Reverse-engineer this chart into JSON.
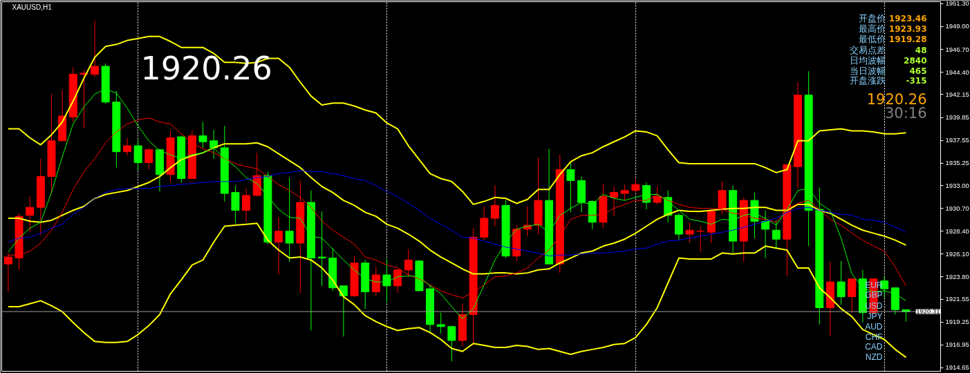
{
  "chart_data": {
    "type": "candlestick",
    "title": "XAUUSD,H1",
    "categories": [
      null,
      null,
      null,
      null,
      null,
      null,
      null,
      null,
      null,
      null,
      null,
      null,
      null,
      null,
      null,
      null,
      null,
      null,
      null,
      null,
      null,
      null,
      null,
      null,
      null,
      null,
      null,
      null,
      null,
      null,
      null,
      null,
      null,
      null,
      null,
      null,
      null,
      null,
      null,
      null,
      null,
      null,
      null,
      null,
      null,
      null,
      null,
      null,
      null,
      null,
      null,
      null,
      null,
      null,
      null,
      null,
      null,
      null,
      null,
      null,
      null,
      null,
      null,
      null,
      null,
      null,
      null,
      null,
      null,
      null,
      null,
      null,
      null,
      null,
      null,
      null,
      null,
      null,
      null,
      null,
      null,
      null,
      null,
      null
    ],
    "ohlc": [
      [
        1925.1,
        1926.2,
        1922.3,
        1925.8
      ],
      [
        1925.7,
        1930.2,
        1924.5,
        1929.9
      ],
      [
        1930.0,
        1931.9,
        1928.3,
        1930.8
      ],
      [
        1930.8,
        1935.7,
        1928.0,
        1933.9
      ],
      [
        1933.9,
        1942.2,
        1932.1,
        1937.5
      ],
      [
        1937.5,
        1942.6,
        1937.5,
        1940.0
      ],
      [
        1939.9,
        1944.9,
        1939.4,
        1944.2
      ],
      [
        1944.2,
        1944.6,
        1938.8,
        1944.3
      ],
      [
        1944.2,
        1949.6,
        1943.9,
        1945.0
      ],
      [
        1945.0,
        1945.3,
        1941.2,
        1941.4
      ],
      [
        1941.4,
        1942.5,
        1934.8,
        1936.4
      ],
      [
        1936.4,
        1937.8,
        1936.0,
        1937.0
      ],
      [
        1937.0,
        1937.6,
        1934.5,
        1935.3
      ],
      [
        1935.3,
        1936.8,
        1934.6,
        1936.6
      ],
      [
        1936.6,
        1936.7,
        1932.4,
        1934.1
      ],
      [
        1934.1,
        1938.5,
        1933.4,
        1937.8
      ],
      [
        1937.9,
        1938.0,
        1933.3,
        1933.7
      ],
      [
        1933.7,
        1938.5,
        1933.7,
        1938.0
      ],
      [
        1938.0,
        1939.4,
        1936.8,
        1937.4
      ],
      [
        1937.5,
        1938.6,
        1935.7,
        1936.8
      ],
      [
        1936.8,
        1939.0,
        1931.4,
        1932.2
      ],
      [
        1932.3,
        1933.0,
        1929.2,
        1930.5
      ],
      [
        1930.5,
        1932.7,
        1929.4,
        1932.0
      ],
      [
        1932.0,
        1936.3,
        1931.9,
        1934.0
      ],
      [
        1934.0,
        1934.4,
        1927.1,
        1927.3
      ],
      [
        1927.3,
        1929.8,
        1924.0,
        1928.4
      ],
      [
        1928.4,
        1933.8,
        1925.3,
        1927.2
      ],
      [
        1927.2,
        1933.5,
        1922.2,
        1931.3
      ],
      [
        1931.3,
        1932.5,
        1918.4,
        1925.7
      ],
      [
        1925.8,
        1930.4,
        1922.9,
        1925.7
      ],
      [
        1925.7,
        1926.7,
        1922.4,
        1922.7
      ],
      [
        1922.9,
        1922.9,
        1917.8,
        1921.9
      ],
      [
        1921.9,
        1925.9,
        1921.8,
        1925.2
      ],
      [
        1925.2,
        1925.5,
        1920.6,
        1922.3
      ],
      [
        1922.3,
        1924.8,
        1921.9,
        1924.0
      ],
      [
        1924.0,
        1925.6,
        1921.2,
        1922.9
      ],
      [
        1922.9,
        1924.6,
        1922.2,
        1924.5
      ],
      [
        1924.5,
        1926.6,
        1923.8,
        1925.5
      ],
      [
        1925.4,
        1925.5,
        1922.4,
        1922.4
      ],
      [
        1922.6,
        1923.0,
        1918.1,
        1919.0
      ],
      [
        1919.0,
        1920.2,
        1918.1,
        1918.8
      ],
      [
        1918.8,
        1918.9,
        1915.3,
        1917.4
      ],
      [
        1917.4,
        1921.1,
        1916.8,
        1920.0
      ],
      [
        1920.0,
        1928.7,
        1916.9,
        1927.8
      ],
      [
        1927.8,
        1930.9,
        1927.5,
        1929.7
      ],
      [
        1929.7,
        1933.0,
        1928.9,
        1931.0
      ],
      [
        1931.0,
        1931.5,
        1925.7,
        1925.9
      ],
      [
        1925.9,
        1929.0,
        1925.4,
        1928.6
      ],
      [
        1928.6,
        1930.9,
        1927.9,
        1929.0
      ],
      [
        1929.0,
        1935.8,
        1928.1,
        1931.5
      ],
      [
        1931.5,
        1936.7,
        1925.1,
        1925.1
      ],
      [
        1925.1,
        1936.1,
        1924.2,
        1934.6
      ],
      [
        1934.6,
        1935.3,
        1930.3,
        1933.5
      ],
      [
        1933.5,
        1933.9,
        1930.3,
        1931.3
      ],
      [
        1931.4,
        1931.5,
        1928.6,
        1929.3
      ],
      [
        1929.3,
        1933.1,
        1928.7,
        1931.9
      ],
      [
        1931.8,
        1932.9,
        1929.9,
        1932.3
      ],
      [
        1932.2,
        1933.1,
        1931.5,
        1932.5
      ],
      [
        1932.5,
        1933.7,
        1932.3,
        1933.1
      ],
      [
        1933.0,
        1933.3,
        1930.6,
        1931.3
      ],
      [
        1931.3,
        1932.9,
        1931.1,
        1931.9
      ],
      [
        1931.8,
        1932.5,
        1929.3,
        1930.0
      ],
      [
        1930.0,
        1930.2,
        1927.5,
        1928.1
      ],
      [
        1928.1,
        1929.3,
        1927.2,
        1928.5
      ],
      [
        1928.4,
        1928.9,
        1926.3,
        1928.4
      ],
      [
        1928.3,
        1930.6,
        1927.2,
        1930.4
      ],
      [
        1930.7,
        1933.4,
        1930.1,
        1932.5
      ],
      [
        1932.5,
        1933.0,
        1926.2,
        1927.4
      ],
      [
        1927.4,
        1931.8,
        1925.3,
        1931.5
      ],
      [
        1931.5,
        1932.3,
        1927.7,
        1929.4
      ],
      [
        1929.4,
        1930.5,
        1925.7,
        1928.6
      ],
      [
        1928.5,
        1929.5,
        1926.7,
        1927.6
      ],
      [
        1927.6,
        1935.1,
        1923.9,
        1935.1
      ],
      [
        1934.9,
        1943.4,
        1932.7,
        1942.1
      ],
      [
        1942.1,
        1944.5,
        1926.9,
        1930.5
      ],
      [
        1930.6,
        1932.8,
        1919.0,
        1920.7
      ],
      [
        1920.7,
        1925.3,
        1917.8,
        1923.3
      ],
      [
        1923.3,
        1925.4,
        1921.0,
        1921.8
      ],
      [
        1921.8,
        1923.6,
        1920.2,
        1923.6
      ],
      [
        1923.6,
        1924.5,
        1919.2,
        1920.2
      ],
      [
        1920.2,
        1923.6,
        1920.0,
        1923.6
      ],
      [
        1923.4,
        1923.9,
        1921.7,
        1922.6
      ],
      [
        1922.7,
        1922.7,
        1920.0,
        1920.5
      ],
      [
        1920.5,
        1920.5,
        1919.3,
        1920.3
      ]
    ],
    "colors": [
      "#ff0000",
      "#ff0000",
      "#ff0000",
      "#ff0000",
      "#ff0000",
      "#ff0000",
      "#ff0000",
      "#ff0000",
      "#ff0000",
      "#00ff00",
      "#00ff00",
      "#ff0000",
      "#00ff00",
      "#ff0000",
      "#00ff00",
      "#ff0000",
      "#00ff00",
      "#ff0000",
      "#00ff00",
      "#00ff00",
      "#00ff00",
      "#00ff00",
      "#ff0000",
      "#ff0000",
      "#00ff00",
      "#ff0000",
      "#00ff00",
      "#ff0000",
      "#00ff00",
      "#00ff00",
      "#00ff00",
      "#00ff00",
      "#ff0000",
      "#00ff00",
      "#ff0000",
      "#00ff00",
      "#ff0000",
      "#ff0000",
      "#00ff00",
      "#00ff00",
      "#00ff00",
      "#00ff00",
      "#ff0000",
      "#ff0000",
      "#ff0000",
      "#ff0000",
      "#00ff00",
      "#ff0000",
      "#ff0000",
      "#ff0000",
      "#00ff00",
      "#ff0000",
      "#00ff00",
      "#00ff00",
      "#00ff00",
      "#ff0000",
      "#ff0000",
      "#ff0000",
      "#ff0000",
      "#00ff00",
      "#ff0000",
      "#00ff00",
      "#00ff00",
      "#ff0000",
      "#ff0000",
      "#ff0000",
      "#ff0000",
      "#00ff00",
      "#ff0000",
      "#00ff00",
      "#00ff00",
      "#00ff00",
      "#ff0000",
      "#ff0000",
      "#00ff00",
      "#00ff00",
      "#ff0000",
      "#00ff00",
      "#ff0000",
      "#00ff00",
      "#ff0000",
      "#00ff00",
      "#00ff00",
      "#00ff00"
    ],
    "series": [
      {
        "type": "line",
        "color": "#ffff00",
        "values": [
          1938.7,
          1938.7,
          1937.8,
          1937.1,
          1938.1,
          1939.4,
          1941.5,
          1943.8,
          1945.9,
          1947.0,
          1947.2,
          1947.6,
          1947.8,
          1948.0,
          1948.0,
          1947.5,
          1946.9,
          1946.9,
          1946.9,
          1946.3,
          1945.4,
          1945.4,
          1945.3,
          1945.4,
          1945.8,
          1945.8,
          1944.9,
          1943.4,
          1942.0,
          1941.1,
          1941.3,
          1941.3,
          1941.0,
          1940.6,
          1940.3,
          1939.3,
          1938.7,
          1937.0,
          1935.6,
          1934.2,
          1933.7,
          1933.4,
          1932.4,
          1931.1,
          1931.4,
          1931.8,
          1931.7,
          1931.2,
          1931.6,
          1932.6,
          1932.6,
          1934.1,
          1935.4,
          1936.0,
          1936.3,
          1936.9,
          1937.4,
          1937.9,
          1938.5,
          1938.4,
          1938.0,
          1936.6,
          1935.3,
          1935.2,
          1935.2,
          1935.2,
          1935.2,
          1935.2,
          1935.2,
          1935.2,
          1934.8,
          1934.3,
          1934.6,
          1937.5,
          1937.5,
          1938.5,
          1938.6,
          1938.7,
          1938.5,
          1938.5,
          1938.4,
          1938.2,
          1938.2,
          1938.3
        ]
      },
      {
        "type": "line",
        "color": "#ffff00",
        "values": [
          1929.7,
          1929.7,
          1929.4,
          1929.3,
          1929.5,
          1930.0,
          1930.5,
          1930.9,
          1931.7,
          1932.1,
          1932.3,
          1932.5,
          1932.9,
          1933.3,
          1933.9,
          1934.8,
          1935.6,
          1936.0,
          1936.3,
          1936.8,
          1937.2,
          1937.2,
          1937.2,
          1937.3,
          1936.9,
          1936.2,
          1935.5,
          1934.8,
          1933.8,
          1932.9,
          1932.3,
          1931.5,
          1931.0,
          1930.3,
          1929.9,
          1929.1,
          1928.7,
          1928.1,
          1927.4,
          1926.5,
          1925.8,
          1925.2,
          1924.6,
          1924.1,
          1924.1,
          1924.2,
          1924.2,
          1924.1,
          1924.2,
          1924.5,
          1924.6,
          1925.2,
          1925.7,
          1926.2,
          1926.4,
          1926.9,
          1927.2,
          1927.6,
          1928.2,
          1928.9,
          1929.6,
          1930.1,
          1930.5,
          1930.4,
          1930.4,
          1930.5,
          1930.6,
          1930.7,
          1930.7,
          1930.8,
          1930.8,
          1930.5,
          1930.5,
          1931.1,
          1931.1,
          1930.5,
          1930.2,
          1929.6,
          1929.0,
          1928.5,
          1928.2,
          1927.9,
          1927.5,
          1927.0
        ]
      },
      {
        "type": "line",
        "color": "#ffff00",
        "values": [
          1920.8,
          1920.8,
          1921.1,
          1921.4,
          1920.9,
          1920.3,
          1919.2,
          1918.2,
          1917.3,
          1917.2,
          1917.2,
          1917.3,
          1918.0,
          1918.9,
          1920.0,
          1922.1,
          1923.5,
          1925.0,
          1925.5,
          1927.3,
          1928.9,
          1929.0,
          1929.1,
          1929.2,
          1927.5,
          1926.5,
          1925.7,
          1925.8,
          1925.5,
          1924.7,
          1923.5,
          1921.8,
          1921.0,
          1919.9,
          1919.3,
          1918.8,
          1918.4,
          1918.6,
          1918.7,
          1918.2,
          1917.5,
          1916.6,
          1916.3,
          1917.1,
          1916.9,
          1916.7,
          1916.7,
          1916.9,
          1916.8,
          1916.5,
          1916.6,
          1916.3,
          1916.0,
          1916.3,
          1916.5,
          1916.7,
          1917.0,
          1917.1,
          1917.7,
          1919.0,
          1920.7,
          1923.2,
          1925.7,
          1925.6,
          1925.6,
          1925.6,
          1926.2,
          1926.1,
          1926.2,
          1926.2,
          1926.9,
          1926.7,
          1926.5,
          1924.7,
          1924.7,
          1922.7,
          1921.7,
          1920.6,
          1919.8,
          1918.5,
          1918.0,
          1917.5,
          1916.5,
          1915.7
        ]
      },
      {
        "type": "line",
        "color": "#ff0000",
        "values": [
          1926.0,
          1926.0,
          1926.4,
          1927.2,
          1928.5,
          1930.3,
          1932.6,
          1934.4,
          1935.7,
          1937.3,
          1938.4,
          1939.2,
          1939.6,
          1939.8,
          1939.4,
          1939.2,
          1938.2,
          1937.3,
          1936.7,
          1936.3,
          1935.7,
          1935.2,
          1934.9,
          1934.7,
          1933.9,
          1933.1,
          1932.5,
          1931.8,
          1930.8,
          1929.4,
          1928.5,
          1927.8,
          1927.1,
          1925.8,
          1925.5,
          1925.0,
          1924.7,
          1924.0,
          1923.6,
          1923.0,
          1922.4,
          1922.0,
          1921.7,
          1922.3,
          1923.0,
          1923.8,
          1923.9,
          1924.2,
          1924.7,
          1925.7,
          1926.5,
          1927.9,
          1929.6,
          1930.0,
          1930.0,
          1930.1,
          1930.7,
          1931.1,
          1931.5,
          1931.5,
          1932.1,
          1931.5,
          1931.1,
          1930.8,
          1930.7,
          1930.7,
          1930.6,
          1930.2,
          1930.1,
          1929.7,
          1929.6,
          1929.3,
          1930.6,
          1931.2,
          1931.5,
          1930.6,
          1929.6,
          1929.0,
          1928.2,
          1927.5,
          1926.9,
          1926.4,
          1924.8,
          1922.9
        ]
      },
      {
        "type": "line",
        "color": "#00ff00",
        "values": [
          1926.3,
          1927.7,
          1928.7,
          1929.3,
          1932.3,
          1935.9,
          1939.2,
          1940.9,
          1942.2,
          1942.7,
          1942.3,
          1940.8,
          1939.0,
          1937.5,
          1936.5,
          1936.1,
          1935.7,
          1936.1,
          1936.3,
          1936.8,
          1935.7,
          1934.9,
          1933.8,
          1933.2,
          1931.9,
          1930.6,
          1929.8,
          1929.7,
          1927.9,
          1927.7,
          1926.6,
          1925.5,
          1924.5,
          1923.6,
          1923.3,
          1923.3,
          1923.8,
          1923.9,
          1923.8,
          1922.9,
          1922.1,
          1920.8,
          1919.6,
          1920.6,
          1923.0,
          1925.5,
          1927.3,
          1928.6,
          1928.9,
          1929.1,
          1928.3,
          1930.0,
          1930.7,
          1931.3,
          1931.1,
          1932.1,
          1931.7,
          1931.5,
          1931.8,
          1932.1,
          1932.1,
          1931.4,
          1930.5,
          1929.6,
          1929.4,
          1929.1,
          1929.6,
          1929.5,
          1930.0,
          1930.2,
          1929.7,
          1929.0,
          1930.6,
          1932.5,
          1932.7,
          1931.2,
          1930.5,
          1927.7,
          1924.1,
          1922.7,
          1922.3,
          1922.4,
          1922.1,
          1921.4
        ]
      },
      {
        "type": "line",
        "color": "#0000ff",
        "values": [
          1927.3,
          1927.7,
          1927.8,
          1928.2,
          1928.7,
          1929.1,
          1930.1,
          1930.8,
          1931.7,
          1932.3,
          1932.6,
          1932.7,
          1932.7,
          1932.7,
          1932.9,
          1933.0,
          1933.1,
          1933.2,
          1933.3,
          1933.4,
          1933.4,
          1933.4,
          1933.6,
          1933.8,
          1933.9,
          1934.2,
          1934.3,
          1934.5,
          1934.4,
          1934.4,
          1934.2,
          1934.0,
          1933.7,
          1933.5,
          1933.0,
          1932.4,
          1931.9,
          1931.2,
          1930.5,
          1929.7,
          1929.1,
          1928.5,
          1927.8,
          1927.7,
          1927.4,
          1927.1,
          1926.8,
          1926.6,
          1926.4,
          1926.2,
          1925.9,
          1926.0,
          1926.0,
          1926.1,
          1926.2,
          1926.2,
          1926.3,
          1926.4,
          1926.6,
          1926.7,
          1927.1,
          1927.4,
          1927.5,
          1927.7,
          1927.9,
          1928.1,
          1928.3,
          1928.5,
          1928.8,
          1929.1,
          1929.4,
          1929.7,
          1930.3,
          1930.7,
          1930.8,
          1930.5,
          1930.3,
          1930.1,
          1930.0,
          1929.6,
          1929.5,
          1929.3,
          1928.8,
          1928.3
        ]
      }
    ],
    "ylim": [
      1914.3,
      1951.5
    ],
    "yticks": [
      {
        "value": 1951.3,
        "label": "1951.30"
      },
      {
        "value": 1949.0,
        "label": "1949.00"
      },
      {
        "value": 1946.7,
        "label": "1946.70"
      },
      {
        "value": 1944.4,
        "label": "1944.40"
      },
      {
        "value": 1942.15,
        "label": "1942.15"
      },
      {
        "value": 1939.85,
        "label": "1939.85"
      },
      {
        "value": 1937.55,
        "label": "1937.55"
      },
      {
        "value": 1935.25,
        "label": "1935.25"
      },
      {
        "value": 1933.0,
        "label": "1933.00"
      },
      {
        "value": 1930.7,
        "label": "1930.70"
      },
      {
        "value": 1928.4,
        "label": "1928.40"
      },
      {
        "value": 1926.1,
        "label": "1926.10"
      },
      {
        "value": 1923.8,
        "label": "1923.80"
      },
      {
        "value": 1921.55,
        "label": "1921.55"
      },
      {
        "value": 1919.25,
        "label": "1919.25"
      },
      {
        "value": 1916.95,
        "label": "1916.95"
      },
      {
        "value": 1914.65,
        "label": "1914.65"
      }
    ],
    "tick_labels": "y",
    "grid": "x",
    "ref_lines": [
      {
        "axis": "y",
        "value": 1920.31,
        "label": "1920.31",
        "color": "#a0a0a0"
      }
    ],
    "annotations": [
      "1920.26",
      "开盘价",
      "1923.46",
      "最高价",
      "1923.93",
      "最低价",
      "1919.28",
      "交易点差",
      "48",
      "日均波幅",
      "2840",
      "当日波幅",
      "465",
      "开盘涨跌",
      "-315",
      "1920.26",
      "30:16",
      "EUR",
      "GBP",
      "USD",
      "JPY",
      "AUD",
      "CHF",
      "CAD",
      "NZD"
    ]
  }
}
